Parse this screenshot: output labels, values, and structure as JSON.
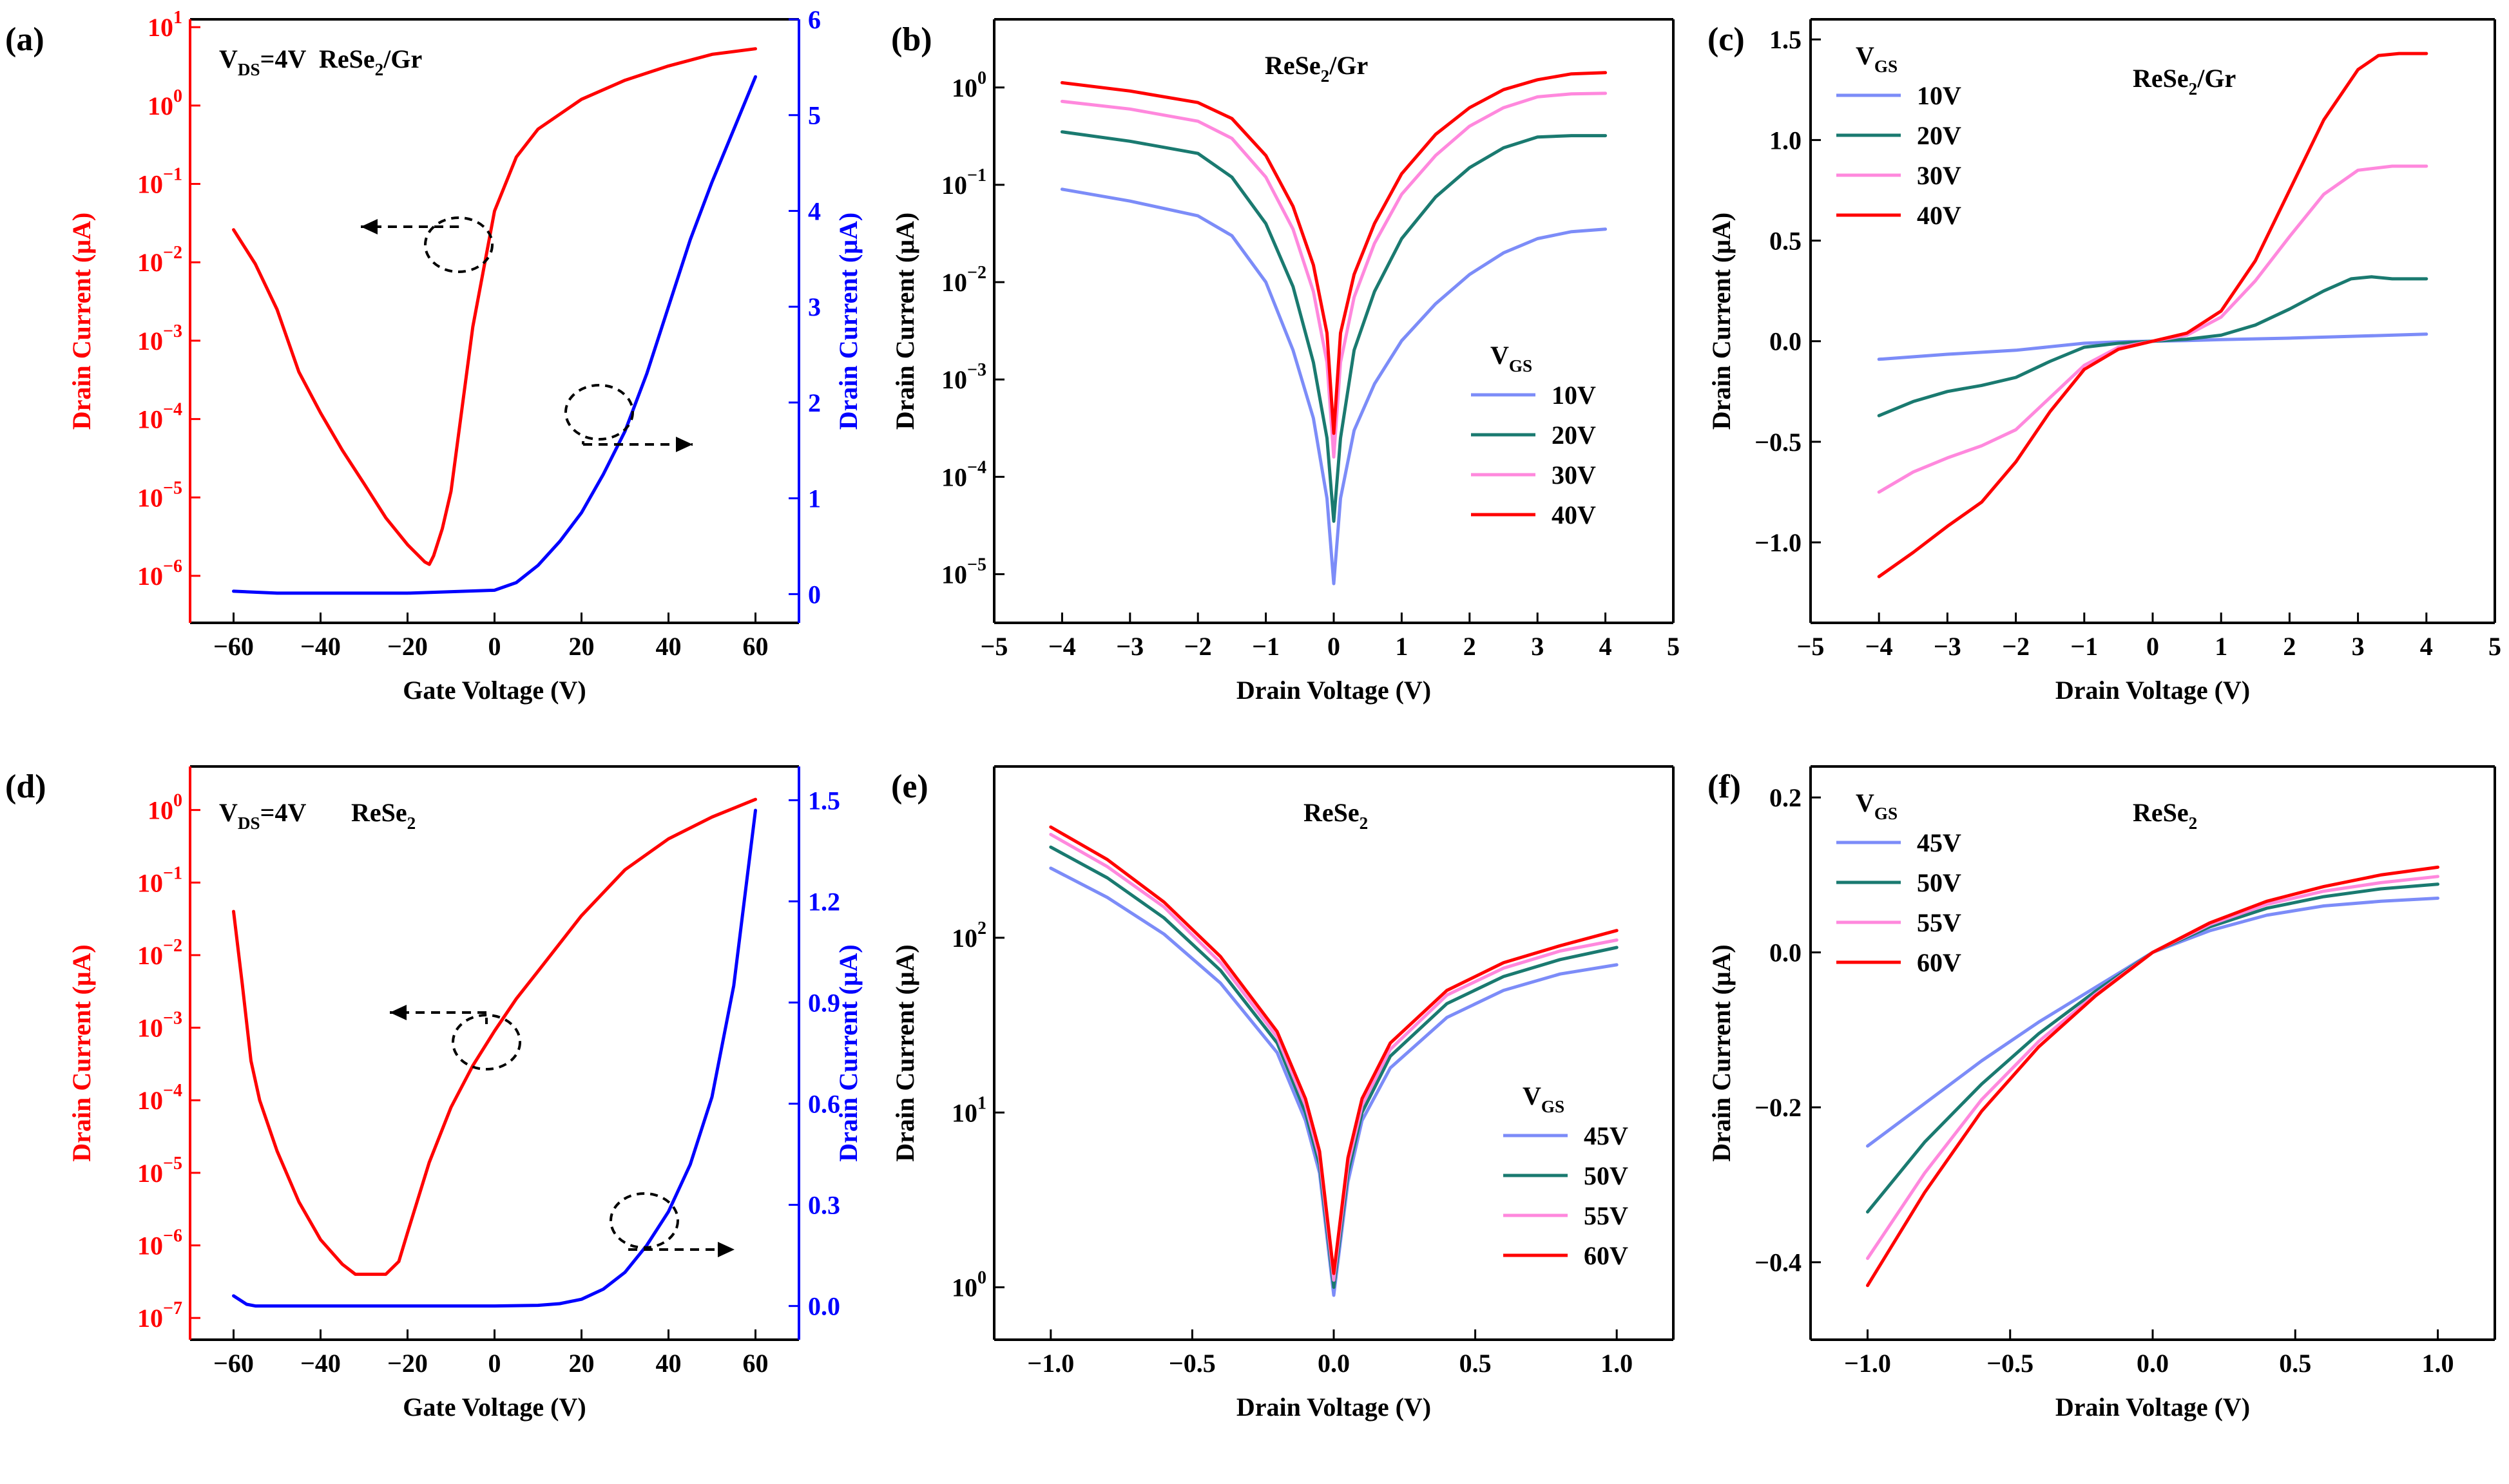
{
  "figure": {
    "colors": {
      "red": "#ff0000",
      "blue": "#0000ff",
      "teal": "#1a7a70",
      "pink": "#ff88dd",
      "lightblue": "#7c8cf8",
      "axis": "#000000"
    }
  },
  "chart_data": [
    {
      "id": "a",
      "panel_label": "(a)",
      "type": "line",
      "annotations": [
        "V_DS=4V",
        "ReSe2/Gr"
      ],
      "xlabel": "Gate Voltage (V)",
      "ylabel": "Drain Current (μA)",
      "ylabel_right": "Drain Current (μA)",
      "xlim": [
        -70,
        70
      ],
      "xticks": [
        -60,
        -40,
        -20,
        0,
        20,
        40,
        60
      ],
      "ylim_log": [
        -6.6,
        1.1
      ],
      "yticks_log": [
        1,
        0,
        -1,
        -2,
        -3,
        -4,
        -5,
        -6
      ],
      "ylim_right": [
        -0.3,
        6
      ],
      "yticks_right": [
        0,
        1,
        2,
        3,
        4,
        5,
        6
      ],
      "series": [
        {
          "color": "red",
          "axis": "left",
          "x": [
            -60,
            -55,
            -50,
            -45,
            -40,
            -35,
            -30,
            -25,
            -20,
            -16,
            -15,
            -14,
            -12,
            -10,
            -5,
            0,
            5,
            10,
            20,
            30,
            40,
            50,
            60
          ],
          "y": [
            0.026,
            0.0095,
            0.0025,
            0.0004,
            0.00012,
            4e-05,
            1.5e-05,
            5.5e-06,
            2.5e-06,
            1.5e-06,
            1.4e-06,
            1.8e-06,
            4e-06,
            1.2e-05,
            0.0015,
            0.045,
            0.22,
            0.5,
            1.2,
            2.1,
            3.2,
            4.5,
            5.3
          ]
        },
        {
          "color": "blue",
          "axis": "right",
          "x": [
            -60,
            -50,
            -40,
            -20,
            0,
            5,
            10,
            15,
            20,
            25,
            30,
            35,
            40,
            45,
            50,
            55,
            60
          ],
          "y": [
            0.03,
            0.01,
            0.01,
            0.01,
            0.04,
            0.12,
            0.3,
            0.55,
            0.85,
            1.25,
            1.7,
            2.3,
            3.0,
            3.7,
            4.3,
            4.85,
            5.4
          ]
        }
      ]
    },
    {
      "id": "b",
      "panel_label": "(b)",
      "type": "line",
      "annotations": [
        "ReSe2/Gr"
      ],
      "xlabel": "Drain Voltage (V)",
      "ylabel": "Drain Current (μA)",
      "xlim": [
        -5,
        5
      ],
      "xticks": [
        -5,
        -4,
        -3,
        -2,
        -1,
        0,
        1,
        2,
        3,
        4,
        5
      ],
      "ylim_log": [
        -5.5,
        0.7
      ],
      "yticks_log": [
        0,
        -1,
        -2,
        -3,
        -4,
        -5
      ],
      "legend": {
        "title": "V_GS",
        "position": "lower-right"
      },
      "series": [
        {
          "name": "10V",
          "color": "lightblue",
          "x": [
            -4,
            -3,
            -2,
            -1.5,
            -1,
            -0.6,
            -0.3,
            -0.1,
            0,
            0.1,
            0.3,
            0.6,
            1,
            1.5,
            2,
            2.5,
            3,
            3.5,
            4
          ],
          "y": [
            0.09,
            0.068,
            0.048,
            0.03,
            0.01,
            0.002,
            0.0004,
            6e-05,
            8e-06,
            6e-05,
            0.0003,
            0.0009,
            0.0025,
            0.006,
            0.012,
            0.02,
            0.028,
            0.033,
            0.035
          ]
        },
        {
          "name": "20V",
          "color": "teal",
          "x": [
            -4,
            -3,
            -2,
            -1.5,
            -1,
            -0.6,
            -0.3,
            -0.1,
            0,
            0.1,
            0.3,
            0.6,
            1,
            1.5,
            2,
            2.5,
            3,
            3.5,
            4
          ],
          "y": [
            0.35,
            0.28,
            0.21,
            0.12,
            0.04,
            0.009,
            0.0015,
            0.00025,
            3.5e-05,
            0.00025,
            0.002,
            0.008,
            0.028,
            0.075,
            0.15,
            0.24,
            0.31,
            0.32,
            0.32
          ]
        },
        {
          "name": "30V",
          "color": "pink",
          "x": [
            -4,
            -3,
            -2,
            -1.5,
            -1,
            -0.6,
            -0.3,
            -0.1,
            0,
            0.1,
            0.3,
            0.6,
            1,
            1.5,
            2,
            2.5,
            3,
            3.5,
            4
          ],
          "y": [
            0.72,
            0.6,
            0.45,
            0.3,
            0.12,
            0.035,
            0.008,
            0.0015,
            0.00016,
            0.0015,
            0.007,
            0.025,
            0.08,
            0.2,
            0.4,
            0.62,
            0.8,
            0.86,
            0.87
          ]
        },
        {
          "name": "40V",
          "color": "red",
          "x": [
            -4,
            -3,
            -2,
            -1.5,
            -1,
            -0.6,
            -0.3,
            -0.1,
            0,
            0.1,
            0.3,
            0.6,
            1,
            1.5,
            2,
            2.5,
            3,
            3.5,
            4
          ],
          "y": [
            1.12,
            0.92,
            0.7,
            0.48,
            0.2,
            0.06,
            0.015,
            0.003,
            0.00028,
            0.003,
            0.012,
            0.04,
            0.13,
            0.33,
            0.62,
            0.95,
            1.2,
            1.38,
            1.42
          ]
        }
      ]
    },
    {
      "id": "c",
      "panel_label": "(c)",
      "type": "line",
      "annotations": [
        "ReSe2/Gr"
      ],
      "xlabel": "Drain Voltage (V)",
      "ylabel": "Drain Current (μA)",
      "xlim": [
        -5,
        5
      ],
      "xticks": [
        -5,
        -4,
        -3,
        -2,
        -1,
        0,
        1,
        2,
        3,
        4,
        5
      ],
      "ylim": [
        -1.4,
        1.6
      ],
      "yticks": [
        -1.0,
        -0.5,
        0.0,
        0.5,
        1.0,
        1.5
      ],
      "legend": {
        "title": "V_GS",
        "position": "top-left"
      },
      "series": [
        {
          "name": "10V",
          "color": "lightblue",
          "x": [
            -4,
            -3,
            -2,
            -1,
            -0.5,
            0,
            0.5,
            1,
            2,
            3,
            4
          ],
          "y": [
            -0.09,
            -0.065,
            -0.045,
            -0.01,
            -0.003,
            0,
            0.003,
            0.008,
            0.015,
            0.025,
            0.035
          ]
        },
        {
          "name": "20V",
          "color": "teal",
          "x": [
            -4,
            -3.5,
            -3,
            -2.5,
            -2,
            -1.5,
            -1,
            -0.5,
            0,
            0.5,
            1,
            1.5,
            2,
            2.5,
            2.9,
            3.2,
            3.5,
            4
          ],
          "y": [
            -0.37,
            -0.3,
            -0.25,
            -0.22,
            -0.18,
            -0.1,
            -0.03,
            -0.01,
            0,
            0.01,
            0.03,
            0.08,
            0.16,
            0.25,
            0.31,
            0.32,
            0.31,
            0.31
          ]
        },
        {
          "name": "30V",
          "color": "pink",
          "x": [
            -4,
            -3.5,
            -3,
            -2.5,
            -2,
            -1.5,
            -1,
            -0.5,
            0,
            0.5,
            1,
            1.5,
            2,
            2.5,
            3,
            3.5,
            4
          ],
          "y": [
            -0.75,
            -0.65,
            -0.58,
            -0.52,
            -0.44,
            -0.28,
            -0.12,
            -0.03,
            0,
            0.03,
            0.12,
            0.3,
            0.52,
            0.73,
            0.85,
            0.87,
            0.87
          ]
        },
        {
          "name": "40V",
          "color": "red",
          "x": [
            -4,
            -3.5,
            -3,
            -2.5,
            -2,
            -1.5,
            -1,
            -0.5,
            0,
            0.5,
            1,
            1.5,
            2,
            2.5,
            3,
            3.3,
            3.6,
            4
          ],
          "y": [
            -1.17,
            -1.05,
            -0.92,
            -0.8,
            -0.6,
            -0.35,
            -0.14,
            -0.04,
            0,
            0.04,
            0.15,
            0.4,
            0.75,
            1.1,
            1.35,
            1.42,
            1.43,
            1.43
          ]
        }
      ]
    },
    {
      "id": "d",
      "panel_label": "(d)",
      "type": "line",
      "annotations": [
        "V_DS=4V",
        "ReSe2"
      ],
      "xlabel": "Gate Voltage (V)",
      "ylabel": "Drain Current (μA)",
      "ylabel_right": "Drain Current (μA)",
      "xlim": [
        -70,
        70
      ],
      "xticks": [
        -60,
        -40,
        -20,
        0,
        20,
        40,
        60
      ],
      "ylim_log": [
        -7.3,
        0.6
      ],
      "yticks_log": [
        0,
        -1,
        -2,
        -3,
        -4,
        -5,
        -6,
        -7
      ],
      "ylim_right": [
        -0.1,
        1.6
      ],
      "yticks_right": [
        0.0,
        0.3,
        0.6,
        0.9,
        1.2,
        1.5
      ],
      "series": [
        {
          "color": "red",
          "axis": "left",
          "x": [
            -60,
            -58,
            -56,
            -54,
            -50,
            -45,
            -40,
            -35,
            -32,
            -30,
            -25,
            -22,
            -20,
            -15,
            -10,
            -5,
            0,
            5,
            10,
            20,
            30,
            40,
            50,
            60
          ],
          "y": [
            0.04,
            0.004,
            0.00035,
            0.0001,
            2e-05,
            4e-06,
            1.2e-06,
            5.5e-07,
            4e-07,
            4e-07,
            4e-07,
            6e-07,
            1.5e-06,
            1.4e-05,
            8e-05,
            0.0003,
            0.0009,
            0.0025,
            0.006,
            0.035,
            0.15,
            0.4,
            0.8,
            1.4
          ]
        },
        {
          "color": "blue",
          "axis": "right",
          "x": [
            -60,
            -57,
            -55,
            -40,
            -20,
            0,
            10,
            15,
            20,
            25,
            30,
            35,
            40,
            45,
            50,
            55,
            60
          ],
          "y": [
            0.03,
            0.005,
            0.0,
            0.0,
            0.0,
            0.0,
            0.002,
            0.007,
            0.02,
            0.05,
            0.1,
            0.18,
            0.28,
            0.42,
            0.62,
            0.95,
            1.47
          ]
        }
      ]
    },
    {
      "id": "e",
      "panel_label": "(e)",
      "type": "line",
      "annotations": [
        "ReSe2"
      ],
      "xlabel": "Drain Voltage (V)",
      "ylabel": "Drain Current (μA)",
      "xlim": [
        -1.2,
        1.2
      ],
      "xticks": [
        -1.0,
        -0.5,
        0.0,
        0.5,
        1.0
      ],
      "ylim_log": [
        -0.3,
        2.98
      ],
      "yticks_log": [
        0,
        1,
        2
      ],
      "legend": {
        "title": "V_GS",
        "position": "lower-right"
      },
      "series": [
        {
          "name": "45V",
          "color": "lightblue",
          "x": [
            -1,
            -0.8,
            -0.6,
            -0.4,
            -0.2,
            -0.1,
            -0.05,
            0,
            0.05,
            0.1,
            0.2,
            0.4,
            0.6,
            0.8,
            1
          ],
          "y": [
            250,
            170,
            105,
            55,
            22,
            9,
            4.5,
            0.9,
            4,
            9,
            18,
            35,
            50,
            62,
            70
          ]
        },
        {
          "name": "50V",
          "color": "teal",
          "x": [
            -1,
            -0.8,
            -0.6,
            -0.4,
            -0.2,
            -0.1,
            -0.05,
            0,
            0.05,
            0.1,
            0.2,
            0.4,
            0.6,
            0.8,
            1
          ],
          "y": [
            330,
            220,
            130,
            65,
            25,
            10,
            5,
            1.0,
            4.5,
            10,
            21,
            42,
            60,
            75,
            88
          ]
        },
        {
          "name": "55V",
          "color": "pink",
          "x": [
            -1,
            -0.8,
            -0.6,
            -0.4,
            -0.2,
            -0.1,
            -0.05,
            0,
            0.05,
            0.1,
            0.2,
            0.4,
            0.6,
            0.8,
            1
          ],
          "y": [
            390,
            255,
            150,
            72,
            27,
            11,
            5.5,
            1.1,
            5,
            11,
            23,
            47,
            67,
            84,
            97
          ]
        },
        {
          "name": "60V",
          "color": "red",
          "x": [
            -1,
            -0.8,
            -0.6,
            -0.4,
            -0.2,
            -0.1,
            -0.05,
            0,
            0.05,
            0.1,
            0.2,
            0.4,
            0.6,
            0.8,
            1
          ],
          "y": [
            430,
            280,
            160,
            78,
            29,
            12,
            6,
            1.2,
            5.5,
            12,
            25,
            50,
            72,
            90,
            110
          ]
        }
      ]
    },
    {
      "id": "f",
      "panel_label": "(f)",
      "type": "line",
      "annotations": [
        "ReSe2"
      ],
      "xlabel": "Drain Voltage (V)",
      "ylabel": "Drain Current (μA)",
      "xlim": [
        -1.2,
        1.2
      ],
      "xticks": [
        -1.0,
        -0.5,
        0.0,
        0.5,
        1.0
      ],
      "ylim": [
        -0.5,
        0.24
      ],
      "yticks": [
        -0.4,
        -0.2,
        0.0,
        0.2
      ],
      "legend": {
        "title": "V_GS",
        "position": "top-left"
      },
      "series": [
        {
          "name": "45V",
          "color": "lightblue",
          "x": [
            -1,
            -0.8,
            -0.6,
            -0.4,
            -0.2,
            0,
            0.2,
            0.4,
            0.6,
            0.8,
            1
          ],
          "y": [
            -0.25,
            -0.195,
            -0.14,
            -0.09,
            -0.045,
            0,
            0.028,
            0.048,
            0.06,
            0.066,
            0.07
          ]
        },
        {
          "name": "50V",
          "color": "teal",
          "x": [
            -1,
            -0.8,
            -0.6,
            -0.4,
            -0.2,
            0,
            0.2,
            0.4,
            0.6,
            0.8,
            1
          ],
          "y": [
            -0.335,
            -0.245,
            -0.17,
            -0.105,
            -0.05,
            0,
            0.033,
            0.057,
            0.072,
            0.082,
            0.088
          ]
        },
        {
          "name": "55V",
          "color": "pink",
          "x": [
            -1,
            -0.8,
            -0.6,
            -0.4,
            -0.2,
            0,
            0.2,
            0.4,
            0.6,
            0.8,
            1
          ],
          "y": [
            -0.395,
            -0.285,
            -0.19,
            -0.115,
            -0.054,
            0,
            0.036,
            0.062,
            0.079,
            0.09,
            0.098
          ]
        },
        {
          "name": "60V",
          "color": "red",
          "x": [
            -1,
            -0.8,
            -0.6,
            -0.4,
            -0.2,
            0,
            0.2,
            0.4,
            0.6,
            0.8,
            1
          ],
          "y": [
            -0.43,
            -0.31,
            -0.205,
            -0.122,
            -0.056,
            0,
            0.038,
            0.066,
            0.085,
            0.1,
            0.11
          ]
        }
      ]
    }
  ]
}
